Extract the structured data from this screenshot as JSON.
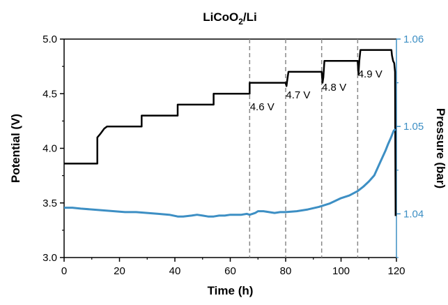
{
  "chart_data": {
    "type": "line",
    "title": {
      "main": "LiCoO",
      "sub": "2",
      "tail": "/Li"
    },
    "xlabel": "Time (h)",
    "ylabel_left": "Potential (V)",
    "ylabel_right": "Pressure (bar)",
    "xlim": [
      0,
      120
    ],
    "ylim_left": [
      3.0,
      5.0
    ],
    "ylim_right": [
      1.035,
      1.06
    ],
    "x_ticks": [
      "0",
      "20",
      "40",
      "60",
      "80",
      "100",
      "120"
    ],
    "y_left_ticks": [
      "3.0",
      "3.5",
      "4.0",
      "4.5",
      "5.0"
    ],
    "y_right_ticks": [
      "1.04",
      "1.05",
      "1.06"
    ],
    "grid": false,
    "colors": {
      "potential": "#000000",
      "pressure": "#3d8fc4",
      "right_axis": "#3d8fc4",
      "markers": "#888888"
    },
    "annotations": [
      {
        "text": "4.6 V",
        "x": 71.5,
        "y": 4.38
      },
      {
        "text": "4.7 V",
        "x": 84.5,
        "y": 4.49
      },
      {
        "text": "4.8 V",
        "x": 97.5,
        "y": 4.56
      },
      {
        "text": "4.9 V",
        "x": 110.5,
        "y": 4.68
      }
    ],
    "vlines": [
      67,
      80,
      93,
      106
    ],
    "series": [
      {
        "axis": "left",
        "x": [
          0,
          12,
          12,
          13,
          14.5,
          15.5,
          28,
          28,
          41,
          41,
          54,
          54,
          67,
          67,
          68,
          70,
          73,
          78,
          80,
          80.3,
          80.6,
          81,
          93,
          93.3,
          93.6,
          94,
          106,
          106.3,
          106.6,
          107,
          118.2,
          118.4,
          118.8,
          119.2,
          119.5,
          119.6,
          119.7
        ],
        "y": [
          3.86,
          3.86,
          4.1,
          4.13,
          4.18,
          4.2,
          4.2,
          4.3,
          4.3,
          4.4,
          4.4,
          4.5,
          4.5,
          4.6,
          4.6,
          4.6,
          4.6,
          4.6,
          4.6,
          4.57,
          4.63,
          4.7,
          4.7,
          4.6,
          4.65,
          4.8,
          4.8,
          4.68,
          4.8,
          4.9,
          4.9,
          4.85,
          4.8,
          4.78,
          4.7,
          4.0,
          3.38
        ]
      },
      {
        "axis": "right",
        "x": [
          0,
          3,
          6,
          10,
          14,
          18,
          22,
          26,
          30,
          34,
          38,
          41,
          43,
          46,
          48,
          50,
          52,
          54,
          56,
          58,
          60,
          62,
          64,
          66,
          67,
          68,
          69,
          70,
          72,
          74,
          76,
          78,
          80,
          84,
          88,
          92,
          96,
          100,
          103,
          106,
          108,
          110,
          112,
          114,
          115,
          116,
          117,
          118,
          119,
          119.6
        ],
        "y": [
          1.0407,
          1.0407,
          1.0406,
          1.0405,
          1.0404,
          1.0403,
          1.0402,
          1.0402,
          1.0401,
          1.04,
          1.0399,
          1.0397,
          1.0397,
          1.0398,
          1.0399,
          1.0398,
          1.0397,
          1.0397,
          1.0398,
          1.0398,
          1.0399,
          1.0399,
          1.0399,
          1.04,
          1.0399,
          1.04,
          1.0401,
          1.0403,
          1.0403,
          1.0402,
          1.0401,
          1.0402,
          1.0402,
          1.0403,
          1.0405,
          1.0408,
          1.0412,
          1.0418,
          1.0421,
          1.0426,
          1.0431,
          1.0437,
          1.0444,
          1.0458,
          1.0465,
          1.0472,
          1.048,
          1.0487,
          1.0495,
          1.0497
        ]
      }
    ]
  }
}
